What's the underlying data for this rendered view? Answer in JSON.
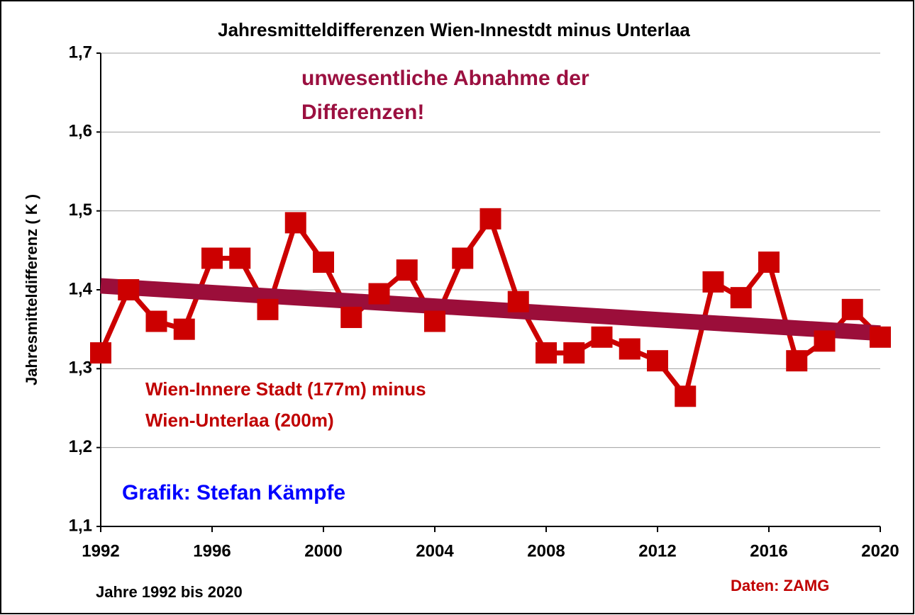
{
  "chart_data": {
    "type": "line",
    "title": "Jahresmitteldifferenzen Wien-Innestdt minus Unterlaa",
    "x_label": "Jahre 1992 bis 2020",
    "y_label": "Jahresmitteldifferenz ( K )",
    "annotations": {
      "trend_note": [
        "unwesentliche  Abnahme  der",
        "Differenzen!"
      ],
      "series_note": [
        "Wien-Innere Stadt (177m) minus",
        "Wien-Unterlaa (200m)"
      ],
      "author": "Grafik: Stefan Kämpfe",
      "source": "Daten: ZAMG"
    },
    "x": [
      1992,
      1993,
      1994,
      1995,
      1996,
      1997,
      1998,
      1999,
      2000,
      2001,
      2002,
      2003,
      2004,
      2005,
      2006,
      2007,
      2008,
      2009,
      2010,
      2011,
      2012,
      2013,
      2014,
      2015,
      2016,
      2017,
      2018,
      2019,
      2020
    ],
    "series": [
      {
        "color": "#cc0000",
        "values": [
          1.32,
          1.4,
          1.36,
          1.35,
          1.44,
          1.44,
          1.375,
          1.485,
          1.435,
          1.365,
          1.395,
          1.425,
          1.36,
          1.44,
          1.49,
          1.385,
          1.32,
          1.32,
          1.34,
          1.325,
          1.31,
          1.265,
          1.41,
          1.39,
          1.435,
          1.31,
          1.335,
          1.375,
          1.34
        ]
      }
    ],
    "trend": {
      "color": "#9b0e3a",
      "x": [
        1992,
        2020
      ],
      "values": [
        1.405,
        1.345
      ]
    },
    "xlim": [
      1992,
      2020
    ],
    "xticks": [
      1992,
      1996,
      2000,
      2004,
      2008,
      2012,
      2016,
      2020
    ],
    "ylim": [
      1.1,
      1.7
    ],
    "yticks": [
      {
        "value": 1.1,
        "label": "1,1"
      },
      {
        "value": 1.2,
        "label": "1,2"
      },
      {
        "value": 1.3,
        "label": "1,3"
      },
      {
        "value": 1.4,
        "label": "1,4"
      },
      {
        "value": 1.5,
        "label": "1,5"
      },
      {
        "value": 1.6,
        "label": "1,6"
      },
      {
        "value": 1.7,
        "label": "1,7"
      }
    ],
    "grid": true
  }
}
